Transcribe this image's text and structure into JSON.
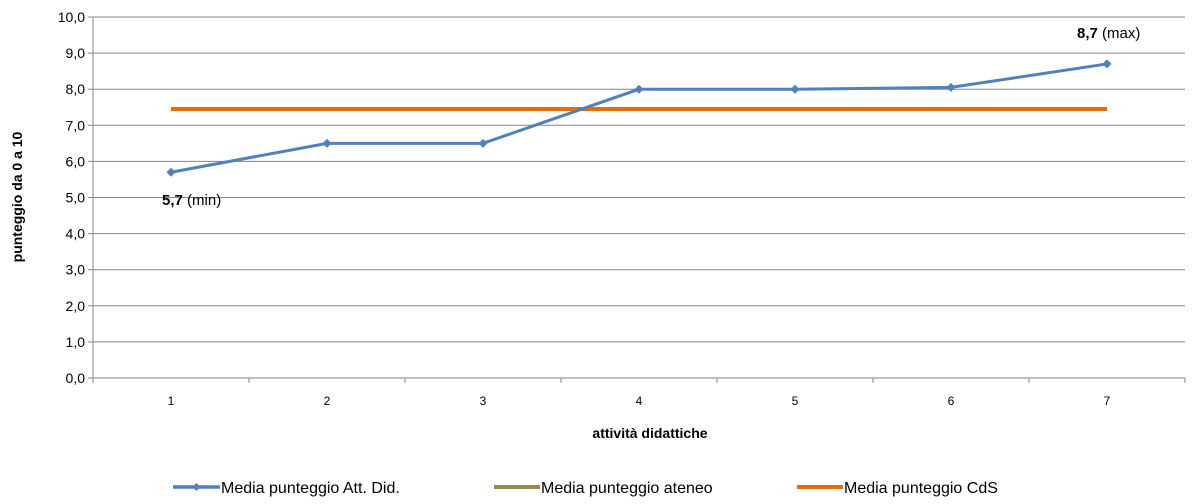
{
  "chart_data": {
    "type": "line",
    "title": "",
    "xlabel": "attività didattiche",
    "ylabel": "punteggio da 0 a 10",
    "ylim": [
      0,
      10
    ],
    "yticks": [
      "0,0",
      "1,0",
      "2,0",
      "3,0",
      "4,0",
      "5,0",
      "6,0",
      "7,0",
      "8,0",
      "9,0",
      "10,0"
    ],
    "categories": [
      "1",
      "2",
      "3",
      "4",
      "5",
      "6",
      "7"
    ],
    "grid": true,
    "legend_position": "bottom",
    "series": [
      {
        "name": "Media punteggio Att. Did.",
        "values": [
          5.7,
          6.5,
          6.5,
          8.0,
          8.0,
          8.05,
          8.7
        ],
        "color": "#4f81bd",
        "marker": "diamond"
      },
      {
        "name": "Media punteggio ateneo",
        "values": [
          7.45,
          7.45,
          7.45,
          7.45,
          7.45,
          7.45,
          7.45
        ],
        "color": "#948a54"
      },
      {
        "name": "Media punteggio CdS",
        "values": [
          7.45,
          7.45,
          7.45,
          7.45,
          7.45,
          7.45,
          7.45
        ],
        "color": "#e46c0a"
      }
    ],
    "annotations": {
      "min": {
        "value": "5,7",
        "suffix": " (min)"
      },
      "max": {
        "value": "8,7",
        "suffix": " (max)"
      }
    }
  }
}
